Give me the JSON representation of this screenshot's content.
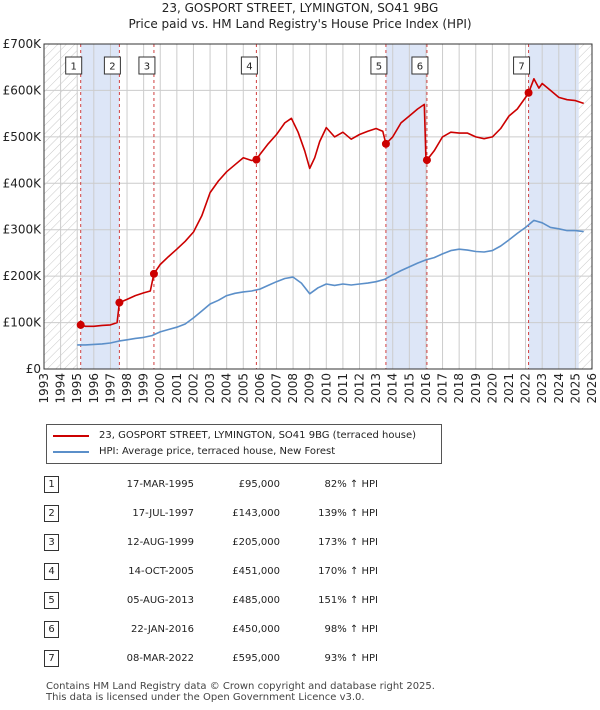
{
  "title_line1": "23, GOSPORT STREET, LYMINGTON, SO41 9BG",
  "title_line2": "Price paid vs. HM Land Registry's House Price Index (HPI)",
  "colors": {
    "price": "#cc0000",
    "hpi": "#5b8fc9",
    "shade": "#dde6f7",
    "grid": "#cccccc",
    "vline": "#d04040"
  },
  "chart_data": {
    "type": "line",
    "title": "Price paid vs. HM Land Registry's House Price Index (HPI)",
    "xlim": [
      1993,
      2026
    ],
    "ylim": [
      0,
      700000
    ],
    "x_ticks": [
      "1993",
      "1994",
      "1995",
      "1996",
      "1997",
      "1998",
      "1999",
      "2000",
      "2001",
      "2002",
      "2003",
      "2004",
      "2005",
      "2006",
      "2007",
      "2008",
      "2009",
      "2010",
      "2011",
      "2012",
      "2013",
      "2014",
      "2015",
      "2016",
      "2017",
      "2018",
      "2019",
      "2020",
      "2021",
      "2022",
      "2023",
      "2024",
      "2025",
      "2026"
    ],
    "y_ticks": [
      {
        "value": 0,
        "label": "£0"
      },
      {
        "value": 100000,
        "label": "£100K"
      },
      {
        "value": 200000,
        "label": "£200K"
      },
      {
        "value": 300000,
        "label": "£300K"
      },
      {
        "value": 400000,
        "label": "£400K"
      },
      {
        "value": 500000,
        "label": "£500K"
      },
      {
        "value": 600000,
        "label": "£600K"
      },
      {
        "value": 700000,
        "label": "£700K"
      }
    ],
    "data_start": 1995.0,
    "shaded_periods": [
      [
        1995.21,
        1997.54
      ],
      [
        2013.59,
        2016.06
      ],
      [
        2022.18,
        2025.2
      ]
    ],
    "series": [
      {
        "name": "23, GOSPORT STREET, LYMINGTON, SO41 9BG (terraced house)",
        "x": [
          1995.21,
          1995.5,
          1996.0,
          1996.5,
          1997.0,
          1997.4,
          1997.54,
          1998.0,
          1998.5,
          1999.0,
          1999.4,
          1999.62,
          2000.0,
          2000.5,
          2001.0,
          2001.5,
          2002.0,
          2002.5,
          2003.0,
          2003.5,
          2004.0,
          2004.5,
          2005.0,
          2005.5,
          2005.79,
          2006.0,
          2006.5,
          2007.0,
          2007.5,
          2007.9,
          2008.3,
          2008.7,
          2009.0,
          2009.3,
          2009.6,
          2010.0,
          2010.5,
          2011.0,
          2011.5,
          2012.0,
          2012.5,
          2013.0,
          2013.4,
          2013.59,
          2014.0,
          2014.5,
          2015.0,
          2015.5,
          2015.9,
          2016.0,
          2016.06,
          2016.5,
          2017.0,
          2017.5,
          2018.0,
          2018.5,
          2019.0,
          2019.5,
          2020.0,
          2020.5,
          2021.0,
          2021.5,
          2022.0,
          2022.18,
          2022.5,
          2022.8,
          2023.0,
          2023.5,
          2024.0,
          2024.5,
          2025.0,
          2025.5
        ],
        "values": [
          95000,
          92000,
          92000,
          94000,
          95000,
          100000,
          143000,
          150000,
          158000,
          164000,
          168000,
          205000,
          225000,
          242000,
          258000,
          275000,
          295000,
          330000,
          380000,
          405000,
          425000,
          440000,
          455000,
          449000,
          451000,
          462000,
          485000,
          505000,
          530000,
          540000,
          510000,
          470000,
          432000,
          455000,
          490000,
          520000,
          500000,
          510000,
          495000,
          505000,
          512000,
          518000,
          512000,
          485000,
          500000,
          530000,
          545000,
          560000,
          570000,
          455000,
          450000,
          470000,
          500000,
          510000,
          508000,
          508000,
          500000,
          496000,
          500000,
          518000,
          545000,
          560000,
          585000,
          595000,
          625000,
          605000,
          615000,
          600000,
          585000,
          580000,
          578000,
          572000
        ]
      },
      {
        "name": "HPI: Average price, terraced house, New Forest",
        "x": [
          1995.0,
          1995.5,
          1996.0,
          1996.5,
          1997.0,
          1997.5,
          1998.0,
          1998.5,
          1999.0,
          1999.5,
          2000.0,
          2000.5,
          2001.0,
          2001.5,
          2002.0,
          2002.5,
          2003.0,
          2003.5,
          2004.0,
          2004.5,
          2005.0,
          2005.5,
          2006.0,
          2006.5,
          2007.0,
          2007.5,
          2008.0,
          2008.5,
          2009.0,
          2009.5,
          2010.0,
          2010.5,
          2011.0,
          2011.5,
          2012.0,
          2012.5,
          2013.0,
          2013.5,
          2014.0,
          2014.5,
          2015.0,
          2015.5,
          2016.0,
          2016.5,
          2017.0,
          2017.5,
          2018.0,
          2018.5,
          2019.0,
          2019.5,
          2020.0,
          2020.5,
          2021.0,
          2021.5,
          2022.0,
          2022.5,
          2023.0,
          2023.5,
          2024.0,
          2024.5,
          2025.0,
          2025.5
        ],
        "values": [
          52000,
          52000,
          53000,
          54000,
          56000,
          60000,
          63000,
          66000,
          68000,
          72000,
          80000,
          85000,
          90000,
          97000,
          110000,
          125000,
          140000,
          148000,
          158000,
          163000,
          166000,
          168000,
          172000,
          180000,
          188000,
          195000,
          198000,
          185000,
          162000,
          175000,
          183000,
          180000,
          183000,
          181000,
          183000,
          185000,
          188000,
          193000,
          203000,
          212000,
          220000,
          228000,
          235000,
          240000,
          248000,
          255000,
          258000,
          256000,
          253000,
          252000,
          255000,
          265000,
          278000,
          292000,
          305000,
          320000,
          315000,
          305000,
          302000,
          298000,
          298000,
          296000
        ]
      }
    ],
    "sales": [
      {
        "n": "1",
        "x": 1995.21,
        "value": 95000
      },
      {
        "n": "2",
        "x": 1997.54,
        "value": 143000
      },
      {
        "n": "3",
        "x": 1999.62,
        "value": 205000
      },
      {
        "n": "4",
        "x": 2005.79,
        "value": 451000
      },
      {
        "n": "5",
        "x": 2013.59,
        "value": 485000
      },
      {
        "n": "6",
        "x": 2016.06,
        "value": 450000
      },
      {
        "n": "7",
        "x": 2022.18,
        "value": 595000
      }
    ]
  },
  "legend": {
    "price_label": "23, GOSPORT STREET, LYMINGTON, SO41 9BG (terraced house)",
    "hpi_label": "HPI: Average price, terraced house, New Forest"
  },
  "transactions": [
    {
      "n": "1",
      "date": "17-MAR-1995",
      "price": "£95,000",
      "hpi": "82% ↑ HPI"
    },
    {
      "n": "2",
      "date": "17-JUL-1997",
      "price": "£143,000",
      "hpi": "139% ↑ HPI"
    },
    {
      "n": "3",
      "date": "12-AUG-1999",
      "price": "£205,000",
      "hpi": "173% ↑ HPI"
    },
    {
      "n": "4",
      "date": "14-OCT-2005",
      "price": "£451,000",
      "hpi": "170% ↑ HPI"
    },
    {
      "n": "5",
      "date": "05-AUG-2013",
      "price": "£485,000",
      "hpi": "151% ↑ HPI"
    },
    {
      "n": "6",
      "date": "22-JAN-2016",
      "price": "£450,000",
      "hpi": "98% ↑ HPI"
    },
    {
      "n": "7",
      "date": "08-MAR-2022",
      "price": "£595,000",
      "hpi": "93% ↑ HPI"
    }
  ],
  "footer": {
    "line1": "Contains HM Land Registry data © Crown copyright and database right 2025.",
    "line2": "This data is licensed under the Open Government Licence v3.0."
  }
}
